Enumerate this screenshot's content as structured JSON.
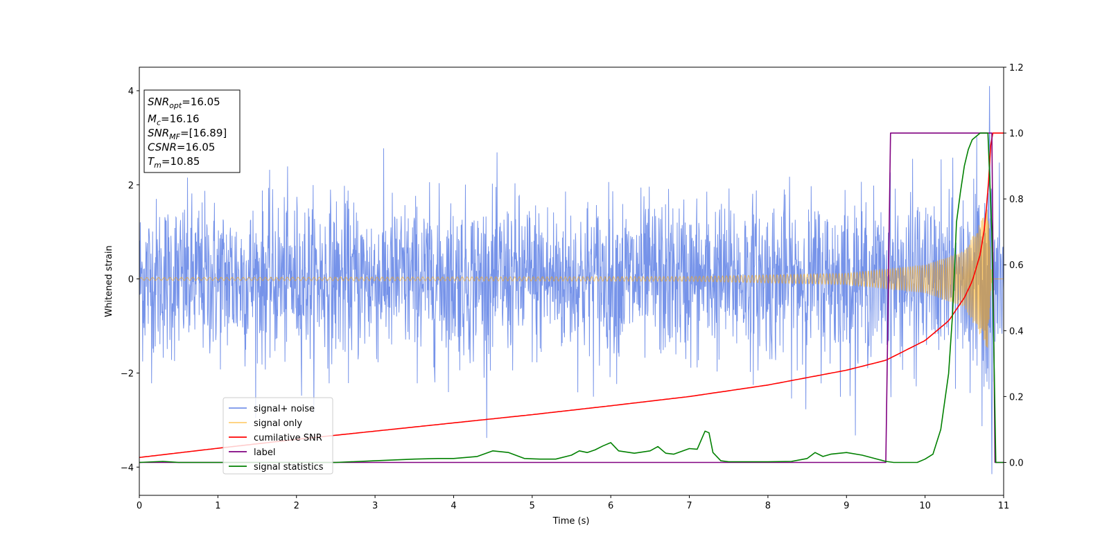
{
  "chart_data": {
    "type": "line",
    "title": "",
    "xlabel": "Time (s)",
    "ylabel": "Whitened strain",
    "y2label": "",
    "xlim": [
      0,
      11
    ],
    "ylim": [
      -4.6,
      4.5
    ],
    "y2lim": [
      -0.1,
      1.2
    ],
    "x_ticks": [
      "0",
      "1",
      "2",
      "3",
      "4",
      "5",
      "6",
      "7",
      "8",
      "9",
      "10",
      "11"
    ],
    "y_ticks": [
      "−4",
      "−2",
      "0",
      "2",
      "4"
    ],
    "y2_ticks": [
      "0.0",
      "0.2",
      "0.4",
      "0.6",
      "0.8",
      "1.0",
      "1.2"
    ],
    "grid": false,
    "legend_position": "lower-left",
    "annotation": [
      {
        "base": "SNR",
        "sub": "opt",
        "text": "=16.05"
      },
      {
        "base": "M",
        "sub": "c",
        "text": "=16.16"
      },
      {
        "base": "SNR",
        "sub": "MF",
        "text": "=[16.89]"
      },
      {
        "base": "CSNR",
        "sub": "",
        "text": "=16.05"
      },
      {
        "base": "T",
        "sub": "m",
        "text": "=10.85"
      }
    ],
    "series": [
      {
        "name": "signal+ noise",
        "color": "#4169e1",
        "axis": "left",
        "noise_std": 0.85,
        "peak_point": {
          "x": 10.82,
          "y": 4.1
        },
        "min_point": {
          "x": 10.85,
          "y": -4.15
        }
      },
      {
        "name": "signal only",
        "color": "#ffa500",
        "axis": "left",
        "amplitude_envelope": {
          "x": [
            0,
            7,
            9,
            10,
            10.5,
            10.8,
            10.85
          ],
          "y": [
            0.03,
            0.05,
            0.12,
            0.3,
            0.6,
            1.5,
            0.0
          ]
        }
      },
      {
        "name": "cumilative SNR",
        "color": "#ff0000",
        "axis": "right",
        "x": [
          0,
          1,
          2,
          3,
          4,
          5,
          6,
          7,
          8,
          9,
          9.5,
          10,
          10.3,
          10.5,
          10.6,
          10.7,
          10.75,
          10.8,
          10.83,
          10.85,
          11
        ],
        "y": [
          0.015,
          0.043,
          0.07,
          0.095,
          0.12,
          0.145,
          0.172,
          0.2,
          0.235,
          0.28,
          0.31,
          0.37,
          0.43,
          0.5,
          0.55,
          0.63,
          0.7,
          0.82,
          0.95,
          1.0,
          1.0
        ]
      },
      {
        "name": "label",
        "color": "#800080",
        "axis": "right",
        "x": [
          0,
          9.5,
          9.56,
          10.85,
          10.89,
          11
        ],
        "y": [
          0.0,
          0.0,
          1.0,
          1.0,
          0.0,
          0.0
        ]
      },
      {
        "name": "signal statistics",
        "color": "#008000",
        "axis": "right",
        "x": [
          0,
          0.3,
          0.5,
          1,
          2,
          2.5,
          3,
          3.5,
          3.8,
          4,
          4.3,
          4.5,
          4.7,
          4.9,
          5.1,
          5.3,
          5.5,
          5.6,
          5.7,
          5.8,
          5.9,
          6.0,
          6.1,
          6.3,
          6.5,
          6.6,
          6.7,
          6.8,
          7.0,
          7.1,
          7.2,
          7.25,
          7.3,
          7.4,
          7.5,
          7.6,
          8.0,
          8.3,
          8.5,
          8.6,
          8.7,
          8.8,
          9.0,
          9.2,
          9.5,
          9.6,
          9.9,
          10.0,
          10.1,
          10.2,
          10.3,
          10.35,
          10.4,
          10.45,
          10.5,
          10.55,
          10.6,
          10.7,
          10.8,
          10.85,
          10.9,
          11
        ],
        "y": [
          0.0,
          0.003,
          0.0,
          0.0,
          0.0,
          0.0,
          0.005,
          0.01,
          0.012,
          0.012,
          0.018,
          0.035,
          0.03,
          0.012,
          0.01,
          0.01,
          0.022,
          0.035,
          0.03,
          0.038,
          0.05,
          0.06,
          0.035,
          0.028,
          0.035,
          0.048,
          0.028,
          0.025,
          0.042,
          0.04,
          0.095,
          0.09,
          0.03,
          0.005,
          0.002,
          0.002,
          0.002,
          0.003,
          0.012,
          0.03,
          0.018,
          0.025,
          0.03,
          0.022,
          0.003,
          0.0,
          0.0,
          0.01,
          0.025,
          0.1,
          0.27,
          0.45,
          0.73,
          0.82,
          0.9,
          0.95,
          0.98,
          1.0,
          1.0,
          0.7,
          0.0,
          0.0
        ]
      }
    ]
  }
}
